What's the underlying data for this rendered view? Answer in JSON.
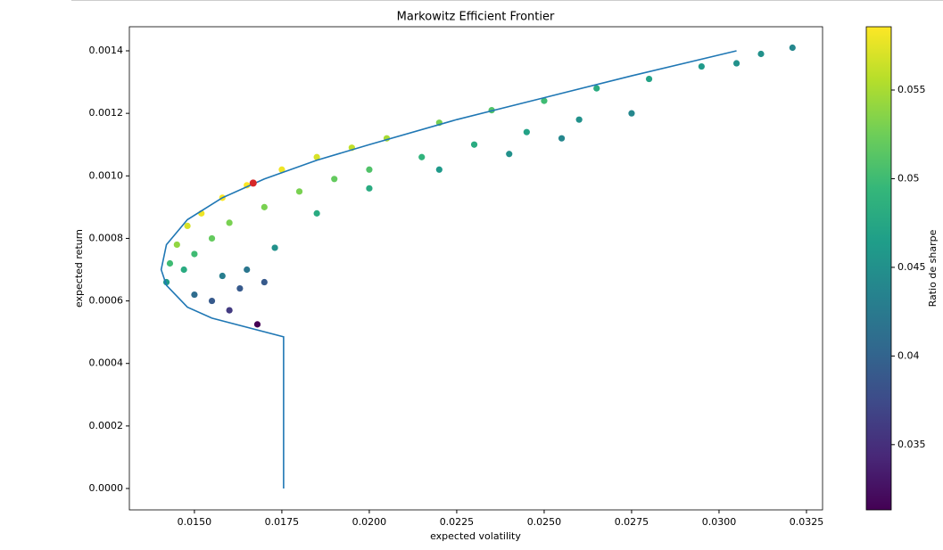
{
  "chart_data": {
    "type": "scatter",
    "title": "Markowitz Efficient Frontier",
    "x_label": "expected volatility",
    "y_label": "expected return",
    "colorbar_label": "Ratio de sharpe",
    "colormap": "viridis",
    "xlim": [
      0.01314,
      0.03296
    ],
    "ylim": [
      -6.84e-05,
      0.001477
    ],
    "xticks": [
      {
        "value": 0.015,
        "label": "0.0150"
      },
      {
        "value": 0.0175,
        "label": "0.0175"
      },
      {
        "value": 0.02,
        "label": "0.0200"
      },
      {
        "value": 0.0225,
        "label": "0.0225"
      },
      {
        "value": 0.025,
        "label": "0.0250"
      },
      {
        "value": 0.0275,
        "label": "0.0275"
      },
      {
        "value": 0.03,
        "label": "0.0300"
      },
      {
        "value": 0.0325,
        "label": "0.0325"
      }
    ],
    "yticks": [
      {
        "value": 0,
        "label": "0.0000"
      },
      {
        "value": 0.0002,
        "label": "0.0002"
      },
      {
        "value": 0.0004,
        "label": "0.0004"
      },
      {
        "value": 0.0006,
        "label": "0.0006"
      },
      {
        "value": 0.0008,
        "label": "0.0008"
      },
      {
        "value": 0.001,
        "label": "0.0010"
      },
      {
        "value": 0.0012,
        "label": "0.0012"
      },
      {
        "value": 0.0014,
        "label": "0.0014"
      }
    ],
    "clim": [
      0.03132,
      0.05857
    ],
    "cticks": [
      0.035,
      0.04,
      0.045,
      0.05,
      0.055
    ],
    "portfolios": {
      "x": [
        0.0142,
        0.0143,
        0.0145,
        0.0148,
        0.0152,
        0.0158,
        0.0165,
        0.0175,
        0.0185,
        0.0195,
        0.0205,
        0.022,
        0.0235,
        0.025,
        0.0265,
        0.028,
        0.0295,
        0.0305,
        0.0312,
        0.0321,
        0.0147,
        0.015,
        0.0155,
        0.016,
        0.017,
        0.018,
        0.019,
        0.02,
        0.0215,
        0.023,
        0.0245,
        0.026,
        0.0275,
        0.015,
        0.0155,
        0.016,
        0.0163,
        0.0165,
        0.017,
        0.0173,
        0.0158,
        0.0185,
        0.02,
        0.022,
        0.024,
        0.0255,
        0.0168
      ],
      "y": [
        0.00066,
        0.00072,
        0.00078,
        0.00084,
        0.00088,
        0.00093,
        0.00097,
        0.00102,
        0.00106,
        0.00109,
        0.00112,
        0.00117,
        0.00121,
        0.00124,
        0.00128,
        0.00131,
        0.00135,
        0.00136,
        0.00139,
        0.00141,
        0.0007,
        0.00075,
        0.0008,
        0.00085,
        0.0009,
        0.00095,
        0.00099,
        0.00102,
        0.00106,
        0.0011,
        0.00114,
        0.00118,
        0.0012,
        0.00062,
        0.0006,
        0.00057,
        0.00064,
        0.0007,
        0.00066,
        0.00077,
        0.00068,
        0.00088,
        0.00096,
        0.00102,
        0.00107,
        0.00112,
        0.000525
      ],
      "sharpe": [
        0.046,
        0.05,
        0.054,
        0.057,
        0.058,
        0.059,
        0.059,
        0.058,
        0.057,
        0.056,
        0.055,
        0.053,
        0.051,
        0.05,
        0.048,
        0.047,
        0.046,
        0.045,
        0.045,
        0.044,
        0.048,
        0.05,
        0.052,
        0.053,
        0.053,
        0.053,
        0.052,
        0.051,
        0.049,
        0.048,
        0.047,
        0.045,
        0.044,
        0.041,
        0.039,
        0.036,
        0.039,
        0.042,
        0.039,
        0.045,
        0.043,
        0.048,
        0.048,
        0.046,
        0.045,
        0.044,
        0.031
      ]
    },
    "frontier": {
      "color": "#1f77b4",
      "x": [
        0.01755,
        0.01755,
        0.0155,
        0.0148,
        0.0142,
        0.01405,
        0.0142,
        0.0148,
        0.0158,
        0.017,
        0.0185,
        0.02,
        0.0225,
        0.025,
        0.0275,
        0.0305
      ],
      "y": [
        0,
        0.000485,
        0.000545,
        0.00058,
        0.00065,
        0.0007,
        0.00078,
        0.00086,
        0.00093,
        0.00099,
        0.00105,
        0.0011,
        0.00118,
        0.00125,
        0.00132,
        0.0014
      ]
    },
    "max_sharpe": {
      "x": 0.01668,
      "y": 0.000977,
      "color": "#d62728"
    }
  }
}
